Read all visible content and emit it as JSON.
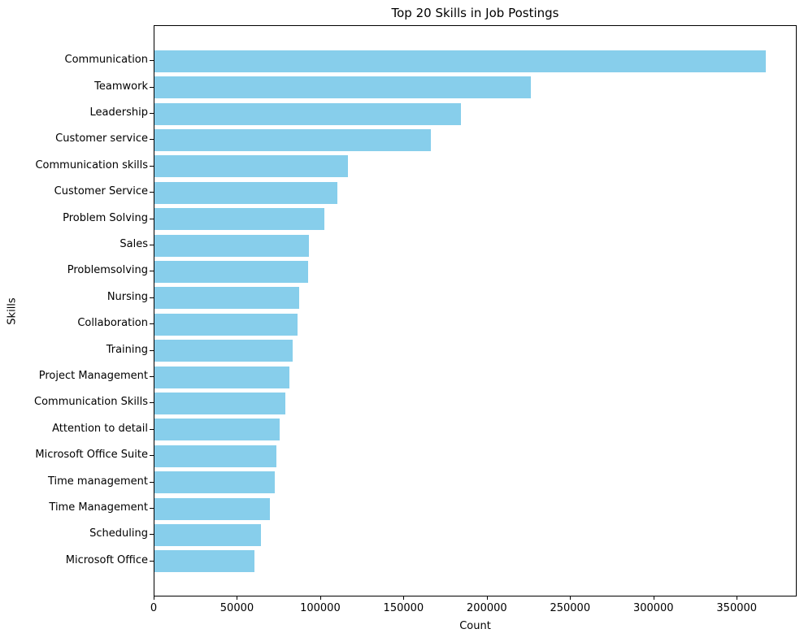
{
  "chart_data": {
    "type": "bar",
    "orientation": "horizontal",
    "title": "Top 20 Skills in Job Postings",
    "xlabel": "Count",
    "ylabel": "Skills",
    "categories": [
      "Communication",
      "Teamwork",
      "Leadership",
      "Customer service",
      "Communication skills",
      "Customer Service",
      "Problem Solving",
      "Sales",
      "Problemsolving",
      "Nursing",
      "Collaboration",
      "Training",
      "Project Management",
      "Communication Skills",
      "Attention to detail",
      "Microsoft Office Suite",
      "Time management",
      "Time Management",
      "Scheduling",
      "Microsoft Office"
    ],
    "values": [
      367000,
      226000,
      184000,
      166000,
      116000,
      110000,
      102000,
      92500,
      92000,
      87000,
      86000,
      83000,
      81000,
      78500,
      75000,
      73000,
      72000,
      69500,
      64000,
      60000
    ],
    "xlim": [
      0,
      386000
    ],
    "xtick_values": [
      0,
      50000,
      100000,
      150000,
      200000,
      250000,
      300000,
      350000
    ],
    "xtick_labels": [
      "0",
      "50000",
      "100000",
      "150000",
      "200000",
      "250000",
      "300000",
      "350000"
    ],
    "bar_color": "#87CEEB",
    "grid": false,
    "legend": null
  }
}
